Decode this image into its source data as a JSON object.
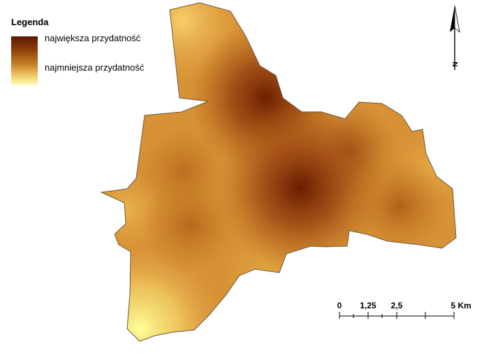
{
  "legend": {
    "title": "Legenda",
    "high_label": "największa przydatność",
    "low_label": "najmniejsza przydatność",
    "high_color": "#5a1800",
    "low_color": "#ffffc0"
  },
  "north_arrow": {
    "label": "N",
    "icon": "north-arrow-icon"
  },
  "scale_bar": {
    "labels": [
      "0",
      "1,25",
      "2,5",
      "5 Km"
    ],
    "unit": "Km"
  },
  "map": {
    "color_scale": [
      "#5a1800",
      "#8a3a0a",
      "#c27a22",
      "#f0c865",
      "#ffffc0"
    ]
  }
}
